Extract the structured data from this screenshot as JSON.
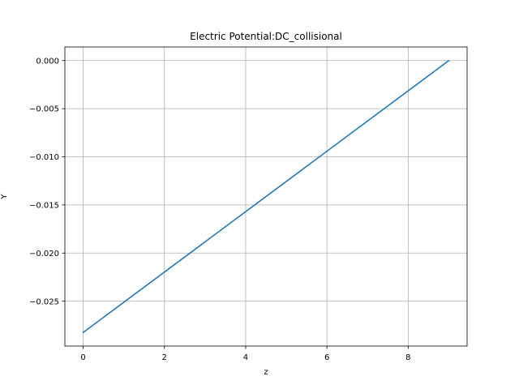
{
  "chart_data": {
    "type": "line",
    "title": "Electric Potential:DC_collisional",
    "xlabel": "z",
    "ylabel": "Y",
    "xlim": [
      -0.45,
      9.45
    ],
    "ylim": [
      -0.02966,
      0.00141
    ],
    "x_ticks": [
      0,
      2,
      4,
      6,
      8
    ],
    "x_tick_labels": [
      "0",
      "2",
      "4",
      "6",
      "8"
    ],
    "y_ticks": [
      0.0,
      -0.005,
      -0.01,
      -0.015,
      -0.02,
      -0.025
    ],
    "y_tick_labels": [
      "0.000",
      "−0.005",
      "−0.010",
      "−0.015",
      "−0.020",
      "−0.025"
    ],
    "grid": true,
    "legend": "none",
    "series": [
      {
        "color": "#1f77b4",
        "x": [
          0,
          9
        ],
        "y": [
          -0.02825,
          0.0
        ]
      }
    ]
  }
}
